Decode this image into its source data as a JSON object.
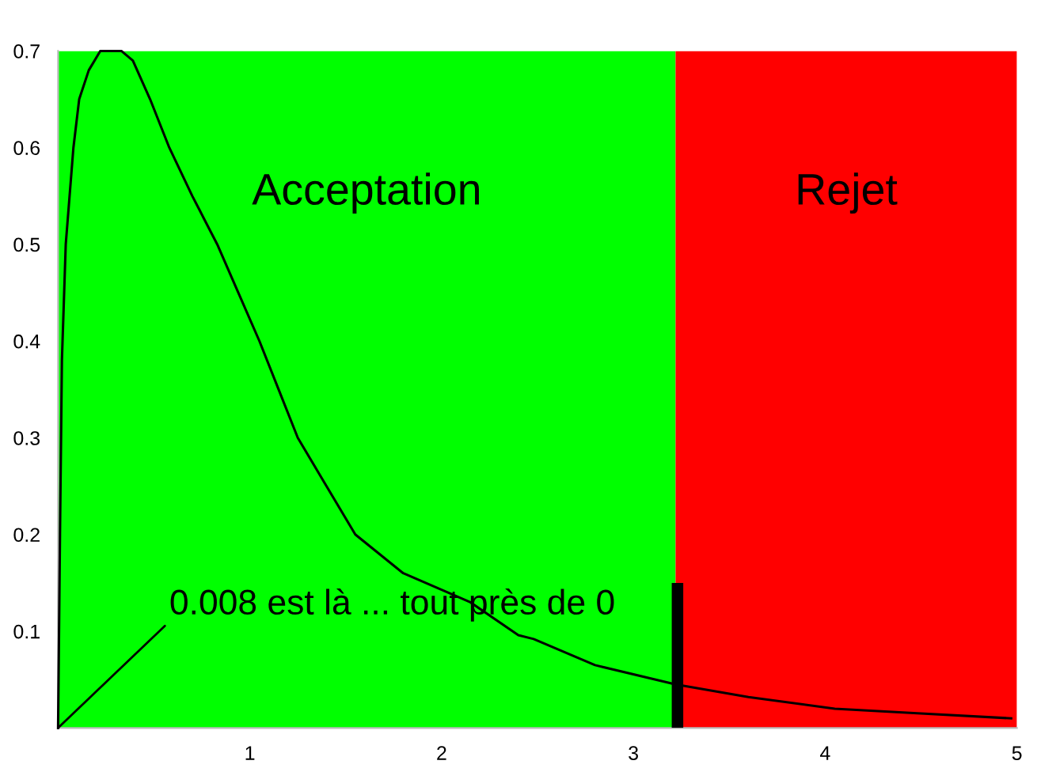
{
  "chart_data": {
    "type": "line",
    "series": [
      {
        "color": "#000000",
        "x": [
          0,
          0.01,
          0.02,
          0.04,
          0.08,
          0.11,
          0.16,
          0.22,
          0.27,
          0.33,
          0.39,
          0.48,
          0.58,
          0.7,
          0.83,
          0.94,
          1.05,
          1.15,
          1.25,
          1.4,
          1.55,
          1.8,
          2.15,
          2.4,
          2.48,
          2.8,
          3.22,
          3.6,
          4.05,
          4.5,
          4.97
        ],
        "values": [
          0,
          0.2,
          0.38,
          0.5,
          0.6,
          0.65,
          0.68,
          0.7,
          0.7,
          0.7,
          0.69,
          0.65,
          0.6,
          0.55,
          0.5,
          0.45,
          0.4,
          0.35,
          0.3,
          0.25,
          0.2,
          0.16,
          0.13,
          0.096,
          0.092,
          0.065,
          0.045,
          0.032,
          0.02,
          0.015,
          0.01
        ]
      },
      {
        "type": "bar",
        "color": "#000000",
        "x": [
          3.23
        ],
        "values": [
          0.15
        ]
      }
    ],
    "xlim": [
      0,
      5
    ],
    "xticks": [
      1,
      2,
      3,
      4,
      5
    ],
    "ylim": [
      0,
      0.7
    ],
    "yticks": [
      0.1,
      0.2,
      0.3,
      0.4,
      0.5,
      0.6,
      0.7
    ],
    "bands": [
      {
        "axis": "x",
        "from": 0,
        "to": 3.22,
        "label": "Acceptation",
        "color": "#00ff00"
      },
      {
        "axis": "x",
        "from": 3.22,
        "to": 5,
        "label": "Rejet",
        "color": "#ff0000"
      }
    ],
    "annotations": [
      {
        "text": "0.008 est là ... tout près de 0",
        "x": 0,
        "y": 0
      }
    ],
    "grid": false,
    "legend": false
  }
}
